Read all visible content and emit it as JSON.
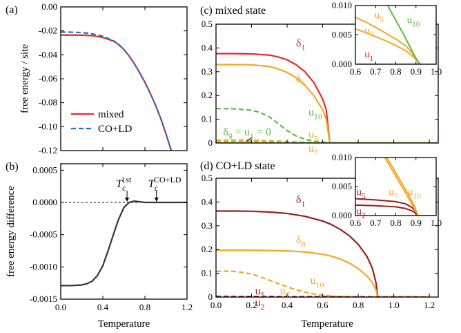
{
  "colors": {
    "red": "#e8282b",
    "orange": "#f5a623",
    "green": "#5cb846",
    "darkred": "#9b1b1f",
    "blue": "#1f6fc8",
    "black": "#333333"
  },
  "chart_data": [
    {
      "id": "a",
      "type": "line",
      "panel_label": "(a)",
      "title": "",
      "xlabel": "",
      "ylabel": "free energy / site",
      "xlim": [
        0,
        1.2
      ],
      "ylim": [
        -0.12,
        0.0
      ],
      "xticks": [
        0.0,
        0.4,
        0.8,
        1.2
      ],
      "xtick_labels": [],
      "yticks": [
        0.0,
        -0.02,
        -0.04,
        -0.06,
        -0.08,
        -0.1,
        -0.12
      ],
      "ytick_labels": [
        "0.00",
        "-0.02",
        "-0.04",
        "-0.06",
        "-0.08",
        "-0.10",
        "-0.12"
      ],
      "legend": {
        "position": "bottom-left",
        "entries": [
          "mixed",
          "CO+LD"
        ]
      },
      "series": [
        {
          "name": "mixed",
          "color": "red",
          "dash": "solid",
          "x": [
            0.0,
            0.1,
            0.2,
            0.3,
            0.4,
            0.5,
            0.55,
            0.6,
            0.65,
            0.7,
            0.75,
            0.8,
            0.85,
            0.9,
            0.95,
            1.0,
            1.05
          ],
          "y": [
            -0.0235,
            -0.0235,
            -0.0236,
            -0.024,
            -0.0255,
            -0.0285,
            -0.0315,
            -0.0355,
            -0.041,
            -0.0475,
            -0.055,
            -0.063,
            -0.072,
            -0.082,
            -0.093,
            -0.106,
            -0.12
          ]
        },
        {
          "name": "CO+LD",
          "color": "blue",
          "dash": "dashed",
          "x": [
            0.0,
            0.1,
            0.2,
            0.3,
            0.4,
            0.5,
            0.55,
            0.6,
            0.65,
            0.7,
            0.75,
            0.8,
            0.85,
            0.9,
            0.95,
            1.0,
            1.05
          ],
          "y": [
            -0.021,
            -0.0211,
            -0.0214,
            -0.0225,
            -0.0245,
            -0.0282,
            -0.0312,
            -0.0355,
            -0.041,
            -0.0475,
            -0.055,
            -0.063,
            -0.072,
            -0.082,
            -0.093,
            -0.106,
            -0.12
          ]
        }
      ]
    },
    {
      "id": "b",
      "type": "line",
      "panel_label": "(b)",
      "title": "",
      "xlabel": "Temperature",
      "ylabel": "free energy difference",
      "xlim": [
        0,
        1.2
      ],
      "ylim": [
        -0.0015,
        0.0006
      ],
      "xticks": [
        0.0,
        0.4,
        0.8,
        1.2
      ],
      "xtick_labels": [
        "0.0",
        "0.4",
        "0.8",
        "1.2"
      ],
      "yticks": [
        0.0005,
        0.0,
        -0.0005,
        -0.001,
        -0.0015
      ],
      "ytick_labels": [
        "0.0005",
        "0.0000",
        "-0.0005",
        "-0.0010",
        "-0.0015"
      ],
      "reference_line": 0.0,
      "annotations": [
        {
          "main": "T",
          "sub": "c",
          "sup": "1st",
          "x": 0.63,
          "y": 0.0
        },
        {
          "main": "T",
          "sub": "c",
          "sup": "CO+LD",
          "x": 0.91,
          "y": 0.0
        }
      ],
      "series": [
        {
          "name": "",
          "color": "black",
          "dash": "solid",
          "x": [
            0.0,
            0.1,
            0.2,
            0.25,
            0.3,
            0.35,
            0.4,
            0.45,
            0.5,
            0.55,
            0.6,
            0.65,
            0.7,
            0.75,
            0.8,
            0.9,
            1.0,
            1.1,
            1.2
          ],
          "y": [
            -0.00129,
            -0.00129,
            -0.00128,
            -0.00126,
            -0.00122,
            -0.00113,
            -0.00098,
            -0.00075,
            -0.0005,
            -0.00026,
            -8e-05,
            0.0,
            2e-05,
            1e-05,
            0.0,
            0.0,
            0.0,
            0.0,
            0.0
          ]
        }
      ]
    },
    {
      "id": "c",
      "type": "line",
      "panel_label": "(c)",
      "title": "mixed state",
      "xlabel": "",
      "ylabel": "",
      "xlim": [
        0,
        1.25
      ],
      "ylim": [
        0,
        0.5
      ],
      "xticks": [
        0.0,
        0.2,
        0.4,
        0.6,
        0.8,
        1.0,
        1.2
      ],
      "xtick_labels": [],
      "yticks": [
        0.0,
        0.1,
        0.2,
        0.3,
        0.4,
        0.5
      ],
      "ytick_labels": [
        "0",
        "0.1",
        "0.2",
        "0.3",
        "0.4",
        "0.5"
      ],
      "series": [
        {
          "name": "δ1",
          "color": "red",
          "dash": "solid",
          "x": [
            0.0,
            0.1,
            0.2,
            0.3,
            0.35,
            0.4,
            0.45,
            0.5,
            0.55,
            0.6,
            0.62,
            0.64,
            0.7,
            0.8,
            1.0,
            1.2
          ],
          "y": [
            0.376,
            0.376,
            0.375,
            0.37,
            0.362,
            0.35,
            0.33,
            0.3,
            0.255,
            0.185,
            0.14,
            0.0,
            0.0,
            0.0,
            0.0,
            0.0
          ]
        },
        {
          "name": "δ5",
          "color": "orange",
          "dash": "solid",
          "x": [
            0.0,
            0.1,
            0.2,
            0.3,
            0.35,
            0.4,
            0.45,
            0.5,
            0.55,
            0.6,
            0.62,
            0.64,
            0.7,
            0.8,
            1.0,
            1.2
          ],
          "y": [
            0.33,
            0.33,
            0.329,
            0.322,
            0.312,
            0.297,
            0.275,
            0.243,
            0.2,
            0.14,
            0.1,
            0.0,
            0.0,
            0.0,
            0.0,
            0.0
          ]
        },
        {
          "name": "u10",
          "color": "green",
          "dash": "dashed",
          "x": [
            0.0,
            0.1,
            0.2,
            0.25,
            0.3,
            0.35,
            0.4,
            0.45,
            0.5,
            0.55,
            0.6,
            0.64,
            0.7,
            1.2
          ],
          "y": [
            0.145,
            0.144,
            0.138,
            0.128,
            0.11,
            0.082,
            0.052,
            0.03,
            0.016,
            0.008,
            0.004,
            0.0,
            0.0,
            0.0
          ]
        },
        {
          "name": "u5",
          "color": "orange",
          "dash": "dashed",
          "x": [
            0.0,
            0.2,
            0.3,
            0.4,
            0.5,
            0.6,
            0.64,
            1.2
          ],
          "y": [
            0.012,
            0.012,
            0.01,
            0.006,
            0.003,
            0.001,
            0.0,
            0.0
          ]
        },
        {
          "name": "u7",
          "color": "orange",
          "dash": "dashed",
          "x": [
            0.0,
            0.2,
            0.3,
            0.4,
            0.5,
            0.6,
            0.64,
            1.2
          ],
          "y": [
            0.007,
            0.007,
            0.006,
            0.004,
            0.002,
            0.001,
            0.0,
            0.0
          ]
        },
        {
          "name": "δ9",
          "color": "green",
          "dash": "solid",
          "x": [
            0.0,
            1.25
          ],
          "y": [
            0.0,
            0.0
          ]
        }
      ],
      "labels": [
        {
          "color": "red",
          "main": "δ",
          "sub": "1",
          "x": 0.45,
          "y": 0.405
        },
        {
          "color": "orange",
          "main": "δ",
          "sub": "5",
          "x": 0.45,
          "y": 0.255
        },
        {
          "color": "green",
          "main": "u",
          "sub": "10",
          "x": 0.52,
          "y": 0.115
        },
        {
          "color": "orange",
          "main": "u",
          "sub": "5",
          "x": 0.52,
          "y": 0.022
        },
        {
          "color": "orange",
          "main": "u",
          "sub": "7",
          "x": 0.52,
          "y": -0.038
        }
      ],
      "note": {
        "color": "green",
        "parts": [
          "δ",
          "9",
          " = u",
          "1",
          " = 0"
        ],
        "x": 0.04,
        "y": 0.032
      },
      "inset": {
        "xlim": [
          0.6,
          1.0
        ],
        "ylim": [
          0,
          0.01
        ],
        "xticks": [
          0.6,
          0.7,
          0.8,
          0.9,
          1.0
        ],
        "xtick_labels": [
          "0.6",
          "0.7",
          "0.8",
          "0.9",
          "1.0"
        ],
        "yticks": [
          0.0,
          0.005,
          0.01
        ],
        "ytick_labels": [
          "0.000",
          "0.005",
          "0.010"
        ],
        "series": [
          {
            "name": "u5",
            "color": "orange",
            "dash": "solid",
            "x": [
              0.6,
              0.65,
              0.7,
              0.75,
              0.8,
              0.85,
              0.88,
              0.9,
              0.92,
              1.0
            ],
            "y": [
              0.008,
              0.0072,
              0.0063,
              0.0053,
              0.0043,
              0.0031,
              0.002,
              0.001,
              0.0,
              0.0
            ]
          },
          {
            "name": "u7",
            "color": "orange",
            "dash": "solid",
            "x": [
              0.6,
              0.65,
              0.7,
              0.75,
              0.8,
              0.85,
              0.88,
              0.9,
              0.92,
              1.0
            ],
            "y": [
              0.006,
              0.0054,
              0.0047,
              0.004,
              0.0032,
              0.0023,
              0.0015,
              0.0008,
              0.0,
              0.0
            ]
          },
          {
            "name": "u1",
            "color": "red",
            "dash": "solid",
            "x": [
              0.6,
              1.0
            ],
            "y": [
              0.0,
              0.0
            ]
          },
          {
            "name": "u10",
            "color": "green",
            "dash": "solid",
            "x": [
              0.76,
              0.8,
              0.84,
              0.87,
              0.9,
              0.92,
              1.0
            ],
            "y": [
              0.01,
              0.0075,
              0.005,
              0.003,
              0.001,
              0.0,
              0.0
            ]
          }
        ],
        "labels": [
          {
            "color": "orange",
            "main": "u",
            "sub": "5",
            "x": 0.695,
            "y": 0.0078
          },
          {
            "color": "orange",
            "main": "u",
            "sub": "7",
            "x": 0.645,
            "y": 0.0052
          },
          {
            "color": "red",
            "main": "u",
            "sub": "1",
            "x": 0.645,
            "y": 0.0012
          },
          {
            "color": "green",
            "main": "u",
            "sub": "10",
            "x": 0.855,
            "y": 0.007
          }
        ]
      }
    },
    {
      "id": "d",
      "type": "line",
      "panel_label": "(d)",
      "title": "CO+LD state",
      "xlabel": "Temperature",
      "ylabel": "",
      "xlim": [
        0,
        1.25
      ],
      "ylim": [
        0,
        0.5
      ],
      "xticks": [
        0.0,
        0.2,
        0.4,
        0.6,
        0.8,
        1.0,
        1.2
      ],
      "xtick_labels": [
        "0.0",
        "0.2",
        "0.4",
        "0.6",
        "0.8",
        "1.0",
        "1.2"
      ],
      "yticks": [
        0.0,
        0.1,
        0.2,
        0.3,
        0.4,
        0.5
      ],
      "ytick_labels": [
        "0",
        "0.1",
        "0.2",
        "0.3",
        "0.4",
        "0.5"
      ],
      "series": [
        {
          "name": "δ1",
          "color": "darkred",
          "dash": "solid",
          "x": [
            0.0,
            0.1,
            0.2,
            0.3,
            0.4,
            0.5,
            0.6,
            0.65,
            0.7,
            0.75,
            0.8,
            0.85,
            0.88,
            0.9,
            0.91,
            1.0,
            1.2
          ],
          "y": [
            0.362,
            0.362,
            0.361,
            0.358,
            0.352,
            0.34,
            0.32,
            0.305,
            0.284,
            0.258,
            0.222,
            0.17,
            0.12,
            0.06,
            0.0,
            0.0,
            0.0
          ]
        },
        {
          "name": "δ8",
          "color": "orange",
          "dash": "solid",
          "x": [
            0.0,
            0.1,
            0.2,
            0.3,
            0.4,
            0.5,
            0.6,
            0.65,
            0.7,
            0.75,
            0.8,
            0.85,
            0.88,
            0.9,
            0.91,
            1.0,
            1.2
          ],
          "y": [
            0.197,
            0.197,
            0.197,
            0.196,
            0.194,
            0.19,
            0.18,
            0.172,
            0.16,
            0.143,
            0.12,
            0.088,
            0.06,
            0.03,
            0.0,
            0.0,
            0.0
          ]
        },
        {
          "name": "u10",
          "color": "orange",
          "dash": "dashed",
          "x": [
            0.0,
            0.05,
            0.1,
            0.15,
            0.2,
            0.25,
            0.3,
            0.35,
            0.4,
            0.45,
            0.5,
            0.55,
            0.6,
            0.65,
            0.7,
            0.8,
            0.91,
            1.2
          ],
          "y": [
            0.108,
            0.109,
            0.108,
            0.104,
            0.097,
            0.085,
            0.071,
            0.057,
            0.043,
            0.031,
            0.021,
            0.013,
            0.008,
            0.004,
            0.002,
            0.0,
            0.0,
            0.0
          ]
        },
        {
          "name": "u2",
          "color": "darkred",
          "dash": "dashed",
          "x": [
            0.0,
            0.91,
            1.2
          ],
          "y": [
            0.003,
            0.001,
            0.0
          ]
        },
        {
          "name": "u5",
          "color": "darkred",
          "dash": "dashed",
          "x": [
            0.0,
            0.91,
            1.2
          ],
          "y": [
            0.001,
            0.0,
            0.0
          ]
        }
      ],
      "labels": [
        {
          "color": "darkred",
          "main": "δ",
          "sub": "1",
          "x": 0.45,
          "y": 0.395
        },
        {
          "color": "orange",
          "main": "δ",
          "sub": "8",
          "x": 0.45,
          "y": 0.225
        },
        {
          "color": "orange",
          "main": "u",
          "sub": "10",
          "x": 0.53,
          "y": 0.055
        },
        {
          "color": "darkred",
          "main": "u",
          "sub": "5",
          "x": 0.22,
          "y": 0.012
        },
        {
          "color": "orange",
          "main": "u",
          "sub": "7",
          "x": 0.36,
          "y": 0.012
        },
        {
          "color": "darkred",
          "main": "u",
          "sub": "2",
          "x": 0.22,
          "y": -0.038
        }
      ],
      "inset": {
        "xlim": [
          0.6,
          1.0
        ],
        "ylim": [
          0,
          0.01
        ],
        "xticks": [
          0.6,
          0.7,
          0.8,
          0.9,
          1.0
        ],
        "xtick_labels": [
          "0.6",
          "0.7",
          "0.8",
          "0.9",
          "1.0"
        ],
        "yticks": [
          0.0,
          0.005,
          0.01
        ],
        "ytick_labels": [
          "0.000",
          "0.005",
          "0.010"
        ],
        "series": [
          {
            "name": "u5",
            "color": "darkred",
            "dash": "solid",
            "x": [
              0.6,
              0.7,
              0.8,
              0.85,
              0.88,
              0.9,
              0.91,
              1.0
            ],
            "y": [
              0.0029,
              0.0027,
              0.0024,
              0.002,
              0.0014,
              0.0007,
              0.0,
              0.0
            ]
          },
          {
            "name": "u2",
            "color": "darkred",
            "dash": "solid",
            "x": [
              0.6,
              0.7,
              0.8,
              0.85,
              0.88,
              0.9,
              0.91,
              1.0
            ],
            "y": [
              0.0018,
              0.0017,
              0.0015,
              0.0012,
              0.0008,
              0.0004,
              0.0,
              0.0
            ]
          },
          {
            "name": "u7",
            "color": "orange",
            "dash": "solid",
            "x": [
              0.745,
              0.78,
              0.82,
              0.85,
              0.88,
              0.91,
              1.0
            ],
            "y": [
              0.01,
              0.008,
              0.0056,
              0.0038,
              0.002,
              0.0,
              0.0
            ]
          },
          {
            "name": "u10",
            "color": "orange",
            "dash": "solid",
            "x": [
              0.755,
              0.79,
              0.83,
              0.86,
              0.89,
              0.91,
              1.0
            ],
            "y": [
              0.01,
              0.008,
              0.0056,
              0.0038,
              0.0018,
              0.0,
              0.0
            ]
          }
        ],
        "labels": [
          {
            "color": "darkred",
            "main": "u",
            "sub": "5",
            "x": 0.605,
            "y": 0.0035
          },
          {
            "color": "darkred",
            "main": "u",
            "sub": "2",
            "x": 0.605,
            "y": 0.0002
          },
          {
            "color": "orange",
            "main": "u",
            "sub": "7",
            "x": 0.765,
            "y": 0.0035
          },
          {
            "color": "orange",
            "main": "u",
            "sub": "10",
            "x": 0.86,
            "y": 0.0035
          }
        ]
      }
    }
  ]
}
